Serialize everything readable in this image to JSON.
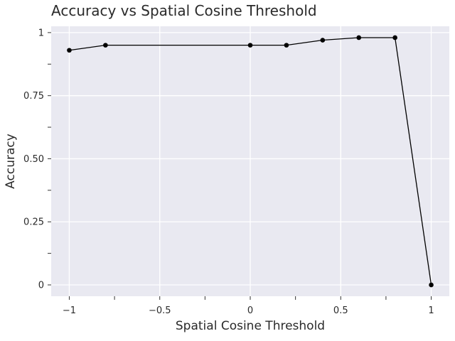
{
  "chart_data": {
    "type": "line",
    "title": "Accuracy vs Spatial Cosine Threshold",
    "xlabel": "Spatial Cosine Threshold",
    "ylabel": "Accuracy",
    "xlim": [
      -1.1,
      1.1
    ],
    "ylim": [
      -0.045,
      1.025
    ],
    "grid": true,
    "x_ticks": [
      -1,
      -0.5,
      0,
      0.5,
      1
    ],
    "x_tick_labels": [
      "−1",
      "−0.5",
      "0",
      "0.5",
      "1"
    ],
    "x_minor_ticks": [
      -0.75,
      -0.25,
      0.25,
      0.75
    ],
    "y_ticks": [
      0,
      0.25,
      0.5,
      0.75,
      1
    ],
    "y_tick_labels": [
      "0",
      "0.25",
      "0.50",
      "0.75",
      "1"
    ],
    "y_minor_ticks": [
      0.125,
      0.375,
      0.625,
      0.875
    ],
    "series": [
      {
        "color": "#000000",
        "x": [
          -1.0,
          -0.8,
          0.0,
          0.2,
          0.4,
          0.6,
          0.8,
          1.0
        ],
        "y": [
          0.93,
          0.95,
          0.95,
          0.95,
          0.97,
          0.98,
          0.98,
          0.0
        ]
      }
    ],
    "colors": {
      "panel": "#e9e9f1",
      "grid": "#ffffff",
      "line": "#000000"
    }
  }
}
